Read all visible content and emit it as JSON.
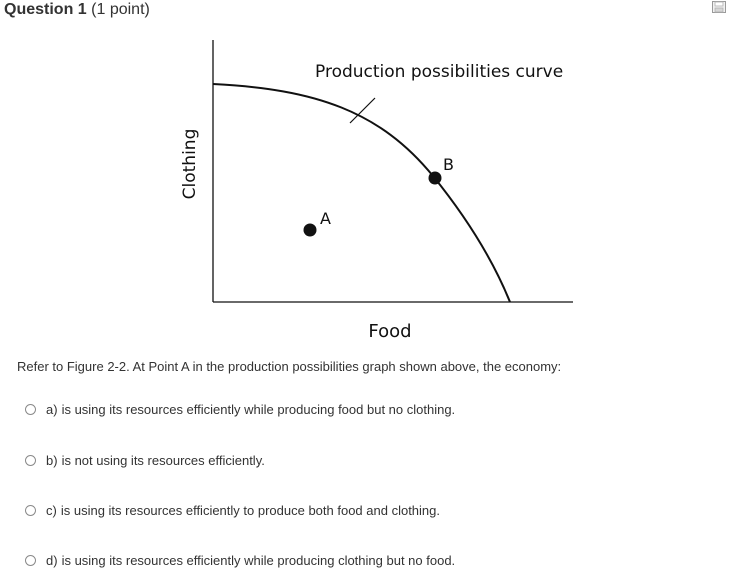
{
  "question": {
    "title": "Question 1",
    "points": "(1 point)",
    "save_icon": "save-icon"
  },
  "figure": {
    "curve_label": "Production possibilities curve",
    "y_axis_label": "Clothing",
    "x_axis_label": "Food",
    "point_a_label": "A",
    "point_b_label": "B"
  },
  "prompt": "Refer to Figure 2-2. At Point A in the production possibilities graph shown above, the economy:",
  "options": [
    {
      "letter": "a)",
      "text": "is using its resources efficiently while producing food but no clothing."
    },
    {
      "letter": "b)",
      "text": "is not using its resources efficiently."
    },
    {
      "letter": "c)",
      "text": "is using its resources efficiently to produce both food and clothing."
    },
    {
      "letter": "d)",
      "text": "is using its resources efficiently while producing clothing but no food."
    }
  ]
}
